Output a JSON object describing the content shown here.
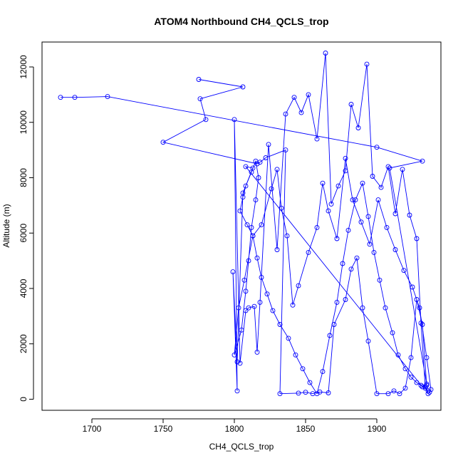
{
  "chart_data": {
    "type": "line",
    "title": "ATOM4 Northbound CH4_QCLS_trop",
    "xlabel": "CH4_QCLS_trop",
    "ylabel": "Altitude (m)",
    "xlim": [
      1665,
      1945
    ],
    "ylim": [
      -400,
      12900
    ],
    "xticks": [
      1700,
      1750,
      1800,
      1850,
      1900
    ],
    "yticks": [
      0,
      2000,
      4000,
      6000,
      8000,
      10000,
      12000
    ],
    "color": "#0000ff",
    "markers": "open-circle",
    "series": [
      {
        "x": [
          1678,
          1688,
          1711,
          1900,
          1932,
          1909,
          1935,
          1932,
          1808,
          1813,
          1806,
          1802,
          1799,
          1802,
          1800,
          1804,
          1808,
          1810,
          1814,
          1816,
          1818,
          1824,
          1830,
          1836,
          1842,
          1847,
          1852,
          1858,
          1864,
          1868,
          1873,
          1878,
          1882,
          1887,
          1893,
          1897,
          1903,
          1908,
          1913,
          1918,
          1923,
          1928,
          1931,
          1934,
          1936,
          1937,
          1938,
          1935,
          1930,
          1925,
          1919,
          1913,
          1907,
          1901,
          1895,
          1889,
          1883,
          1878,
          1872,
          1866,
          1862,
          1858,
          1852,
          1845,
          1841,
          1837,
          1833,
          1830,
          1826,
          1819,
          1813,
          1807,
          1803,
          1800,
          1805,
          1808,
          1810,
          1812,
          1815,
          1817,
          1815,
          1812,
          1808,
          1806,
          1804,
          1809,
          1813,
          1816,
          1819,
          1823,
          1827,
          1832,
          1838,
          1843,
          1848,
          1853,
          1858,
          1862,
          1867,
          1872,
          1876,
          1880,
          1885,
          1890,
          1894,
          1898,
          1902,
          1906,
          1911,
          1915,
          1920,
          1924,
          1928,
          1931,
          1934,
          1936
        ],
        "y": [
          10900,
          10900,
          10930,
          9100,
          8600,
          8350,
          550,
          450,
          8400,
          8350,
          7450,
          1350,
          4600,
          300,
          10100,
          1300,
          3200,
          3300,
          3350,
          1700,
          3500,
          9200,
          5400,
          10300,
          10900,
          10350,
          11000,
          9400,
          12500,
          7050,
          7700,
          8250,
          10650,
          9800,
          12100,
          8050,
          7650,
          8400,
          6700,
          8300,
          6650,
          5800,
          2750,
          450,
          200,
          250,
          350,
          1500,
          3300,
          4050,
          4650,
          5400,
          6200,
          7200,
          5600,
          6400,
          7200,
          8700,
          5800,
          6800,
          7800,
          6200,
          5300,
          4100,
          3400,
          5900,
          6900,
          8300,
          7600,
          6300,
          5900,
          4300,
          3300,
          1600,
          2500,
          3900,
          5000,
          6200,
          7200,
          8000,
          8600,
          8200,
          7700,
          7300,
          6800,
          6300,
          5900,
          5100,
          4400,
          3800,
          3200,
          2700,
          2200,
          1600,
          1100,
          600,
          200,
          1000,
          2300,
          3500,
          4900,
          6100,
          7200,
          7800,
          6600,
          5300,
          4300,
          3300,
          2400,
          1600,
          1100,
          800,
          600,
          500,
          400,
          300
        ]
      },
      {
        "x": [
          1775,
          1806,
          1776,
          1780,
          1750,
          1816,
          1818,
          1822,
          1836,
          1832,
          1845,
          1850,
          1855,
          1860,
          1866,
          1870,
          1878,
          1882,
          1886,
          1890,
          1894,
          1900,
          1908,
          1912,
          1916,
          1920,
          1924,
          1928,
          1932,
          1935
        ],
        "y": [
          11550,
          11280,
          10850,
          10100,
          9280,
          8500,
          8560,
          8720,
          9000,
          200,
          220,
          250,
          200,
          260,
          230,
          2700,
          3600,
          4700,
          5100,
          3300,
          2100,
          200,
          200,
          300,
          200,
          400,
          1500,
          3600,
          2700,
          500
        ]
      }
    ]
  }
}
